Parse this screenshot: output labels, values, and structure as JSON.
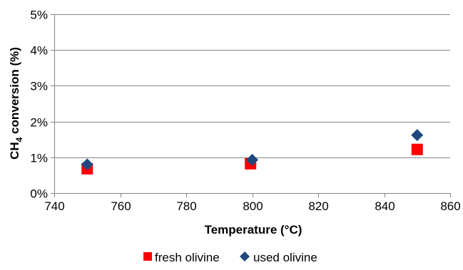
{
  "chart_data": {
    "type": "scatter",
    "xlabel": "Temperature (°C)",
    "ylabel": {
      "prefix": "CH",
      "subscript": "4",
      "suffix": " conversion (%)"
    },
    "xlim": [
      740,
      860
    ],
    "ylim": [
      0,
      0.05
    ],
    "x_ticks": [
      740,
      760,
      780,
      800,
      820,
      840,
      860
    ],
    "x_tick_labels": [
      "740",
      "760",
      "780",
      "800",
      "820",
      "840",
      "860"
    ],
    "y_ticks": [
      0,
      0.01,
      0.02,
      0.03,
      0.04,
      0.05
    ],
    "y_tick_labels": [
      "0%",
      "1%",
      "2%",
      "3%",
      "4%",
      "5%"
    ],
    "grid": "horizontal",
    "legend_position": "bottom",
    "series": [
      {
        "name": "fresh olivine",
        "marker": "square",
        "color": "#ff0000",
        "points": [
          {
            "x": 750,
            "y": 0.0068
          },
          {
            "x": 799.5,
            "y": 0.0082
          },
          {
            "x": 850,
            "y": 0.0122
          }
        ]
      },
      {
        "name": "used olivine",
        "marker": "diamond",
        "color": "#1f497d",
        "points": [
          {
            "x": 750,
            "y": 0.008
          },
          {
            "x": 800,
            "y": 0.0093
          },
          {
            "x": 850,
            "y": 0.0162
          }
        ]
      }
    ]
  }
}
